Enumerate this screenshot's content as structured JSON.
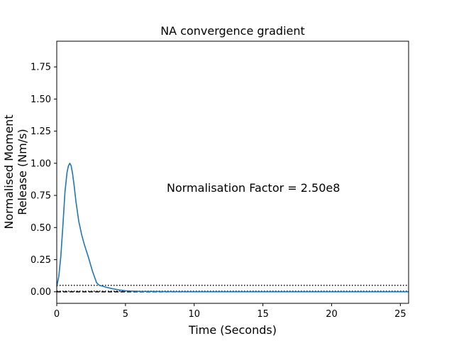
{
  "chart_data": {
    "type": "line",
    "title": "NA convergence gradient",
    "xlabel": "Time (Seconds)",
    "ylabel_lines": [
      "Normalised Moment",
      "Release (Nm/s)"
    ],
    "xlim": [
      0,
      25.6
    ],
    "ylim": [
      -0.09,
      1.95
    ],
    "xticks": [
      0,
      5,
      10,
      15,
      20,
      25
    ],
    "xtick_labels": [
      "0",
      "5",
      "10",
      "15",
      "20",
      "25"
    ],
    "yticks": [
      0.0,
      0.25,
      0.5,
      0.75,
      1.0,
      1.25,
      1.5,
      1.75
    ],
    "ytick_labels": [
      "0.00",
      "0.25",
      "0.50",
      "0.75",
      "1.00",
      "1.25",
      "1.50",
      "1.75"
    ],
    "grid": false,
    "annotation": {
      "text": "Normalisation Factor = 2.50e8",
      "x": 8.0,
      "y": 0.81
    },
    "series": [
      {
        "color": "#1f77b4",
        "style": "solid",
        "x": [
          0,
          0.15,
          0.3,
          0.45,
          0.6,
          0.75,
          0.85,
          0.95,
          1.05,
          1.15,
          1.25,
          1.4,
          1.6,
          1.8,
          2.0,
          2.3,
          2.6,
          2.9,
          3.1,
          3.3,
          3.6,
          4.0,
          4.5,
          5.0,
          5.5,
          6.0,
          7.0,
          8.0,
          10.0,
          15.0,
          20.0,
          25.6
        ],
        "y": [
          0.04,
          0.12,
          0.28,
          0.52,
          0.78,
          0.93,
          0.98,
          1.0,
          0.98,
          0.92,
          0.84,
          0.7,
          0.55,
          0.45,
          0.37,
          0.27,
          0.16,
          0.07,
          0.05,
          0.045,
          0.035,
          0.025,
          0.015,
          0.008,
          0.005,
          0.003,
          0.002,
          0.001,
          0.0,
          0.0,
          0.0,
          0.0
        ]
      }
    ],
    "reference_lines": [
      {
        "y": 0.05,
        "style": "dotted",
        "color": "#000000"
      },
      {
        "y": 0.005,
        "style": "dotted",
        "color": "#000000"
      },
      {
        "y": 0.0,
        "style": "dashed",
        "color": "#000000"
      }
    ]
  }
}
